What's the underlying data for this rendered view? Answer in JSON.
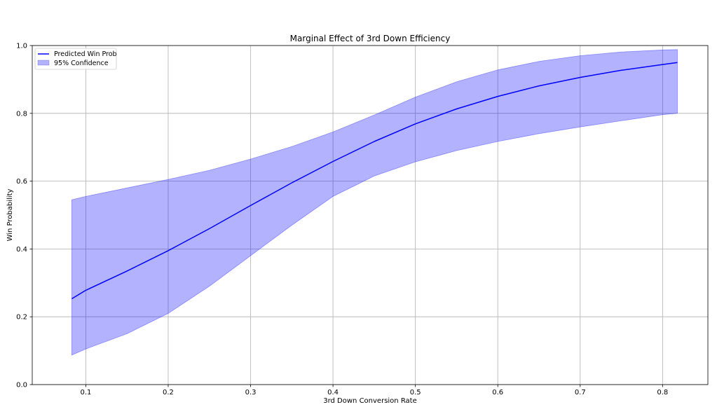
{
  "chart_data": {
    "type": "line",
    "title": "Marginal Effect of 3rd Down Efficiency",
    "xlabel": "3rd Down Conversion Rate",
    "ylabel": "Win Probability",
    "xlim": [
      0.035,
      0.855
    ],
    "ylim": [
      0.0,
      1.0
    ],
    "xticks": [
      0.1,
      0.2,
      0.3,
      0.4,
      0.5,
      0.6,
      0.7,
      0.8
    ],
    "xtick_labels": [
      "0.1",
      "0.2",
      "0.3",
      "0.4",
      "0.5",
      "0.6",
      "0.7",
      "0.8"
    ],
    "yticks": [
      0.0,
      0.2,
      0.4,
      0.6,
      0.8,
      1.0
    ],
    "ytick_labels": [
      "0.0",
      "0.2",
      "0.4",
      "0.6",
      "0.8",
      "1.0"
    ],
    "grid": true,
    "legend_placement": "top-left",
    "x": [
      0.083,
      0.1,
      0.15,
      0.2,
      0.25,
      0.3,
      0.35,
      0.4,
      0.45,
      0.5,
      0.55,
      0.6,
      0.65,
      0.7,
      0.75,
      0.8,
      0.818
    ],
    "series": [
      {
        "name": "Predicted Win Prob",
        "kind": "line",
        "color": "#0000ff",
        "values": [
          0.253,
          0.278,
          0.335,
          0.395,
          0.46,
          0.528,
          0.595,
          0.658,
          0.717,
          0.769,
          0.813,
          0.85,
          0.881,
          0.906,
          0.927,
          0.944,
          0.95
        ]
      },
      {
        "name": "95% Confidence",
        "kind": "band",
        "color": "#0000ff",
        "opacity": 0.3,
        "upper": [
          0.545,
          0.555,
          0.58,
          0.605,
          0.632,
          0.665,
          0.702,
          0.745,
          0.795,
          0.848,
          0.893,
          0.928,
          0.953,
          0.97,
          0.981,
          0.987,
          0.988
        ],
        "lower": [
          0.087,
          0.105,
          0.15,
          0.21,
          0.29,
          0.38,
          0.47,
          0.555,
          0.615,
          0.657,
          0.69,
          0.717,
          0.74,
          0.76,
          0.778,
          0.796,
          0.8
        ]
      }
    ]
  }
}
